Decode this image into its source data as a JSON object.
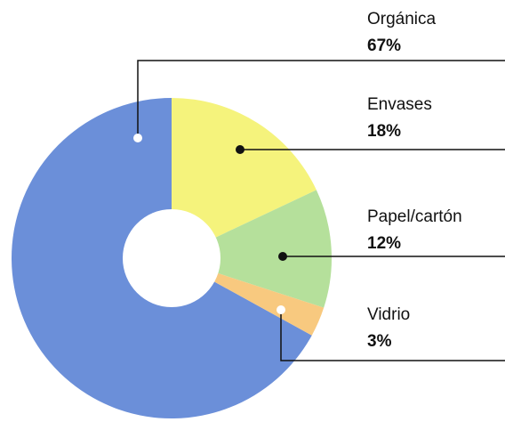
{
  "chart_data": {
    "type": "donut",
    "categories": [
      "Orgánica",
      "Envases",
      "Papel/cartón",
      "Vidrio"
    ],
    "values": [
      67,
      18,
      12,
      3
    ],
    "value_labels": [
      "67%",
      "18%",
      "12%",
      "3%"
    ],
    "colors": [
      "#6b8fd9",
      "#f5f37c",
      "#b5e09b",
      "#f8c97f"
    ]
  }
}
